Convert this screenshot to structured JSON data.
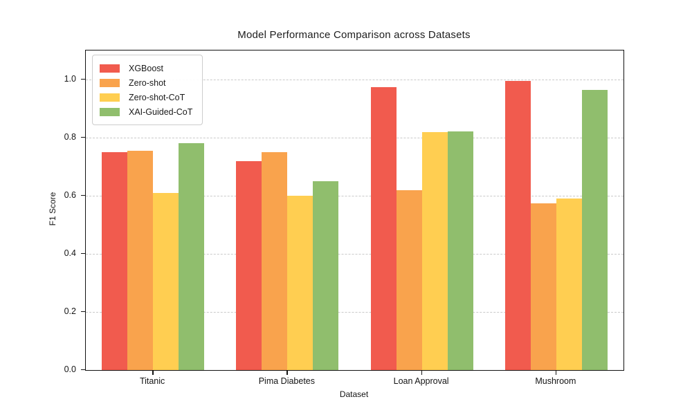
{
  "chart_data": {
    "type": "bar",
    "title": "Model Performance Comparison across Datasets",
    "xlabel": "Dataset",
    "ylabel": "F1 Score",
    "categories": [
      "Titanic",
      "Pima Diabetes",
      "Loan Approval",
      "Mushroom"
    ],
    "series": [
      {
        "name": "XGBoost",
        "color": "#F15B4E",
        "values": [
          0.75,
          0.72,
          0.975,
          0.995
        ]
      },
      {
        "name": "Zero-shot",
        "color": "#F9A34D",
        "values": [
          0.755,
          0.75,
          0.62,
          0.575
        ]
      },
      {
        "name": "Zero-shot-CoT",
        "color": "#FFCE51",
        "values": [
          0.61,
          0.6,
          0.82,
          0.59
        ]
      },
      {
        "name": "XAI-Guided-CoT",
        "color": "#90BE6D",
        "values": [
          0.78,
          0.65,
          0.822,
          0.965
        ]
      }
    ],
    "ylim": [
      0.0,
      1.1
    ],
    "yticks": [
      0.0,
      0.2,
      0.4,
      0.6,
      0.8,
      1.0
    ],
    "ytick_labels": [
      "0.0",
      "0.2",
      "0.4",
      "0.6",
      "0.8",
      "1.0"
    ],
    "grid": "horizontal-dashed",
    "legend_position": "upper-left",
    "colors": {
      "gridline": "#c9c9c9",
      "spine": "#111111",
      "text": "#141414",
      "legend_border": "#cccccc"
    }
  }
}
